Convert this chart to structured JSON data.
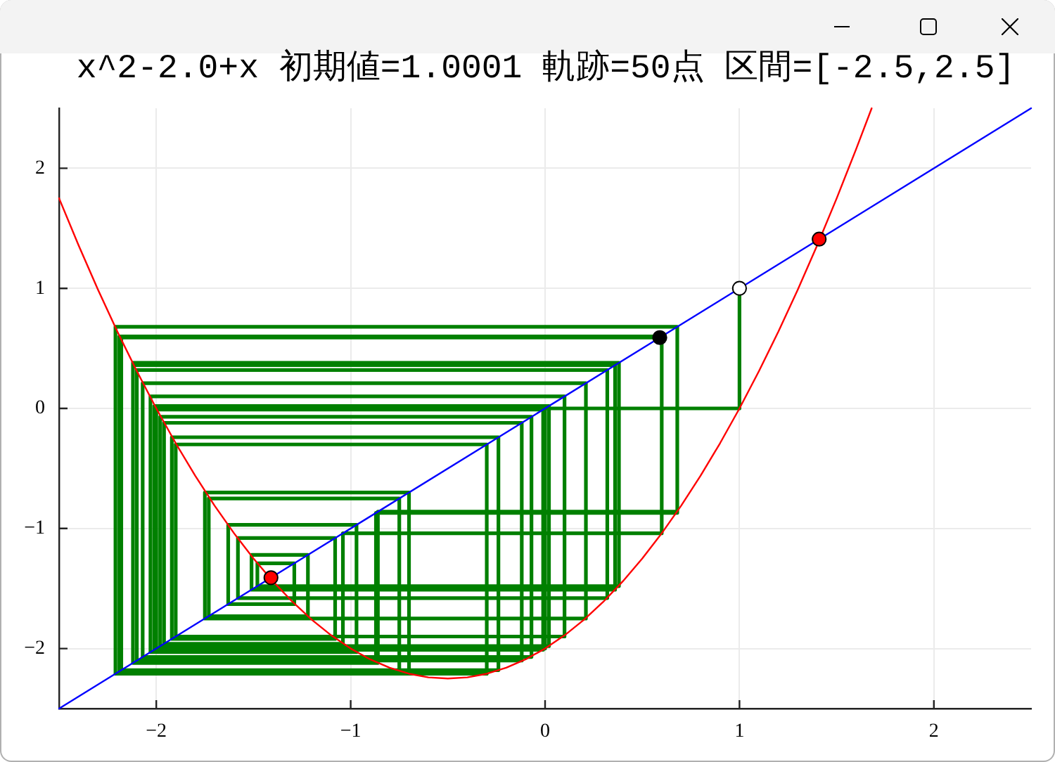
{
  "chart_data": {
    "type": "line",
    "title": "x^2-2.0+x 初期値=1.0001 軌跡=50点 区間=[-2.5,2.5]",
    "xlim": [
      -2.5,
      2.5
    ],
    "xticks": [
      -2,
      -1,
      0,
      1,
      2
    ],
    "ylim": [
      -2.5,
      2.5
    ],
    "yticks": [
      -2,
      -1,
      0,
      1,
      2
    ],
    "grid": true,
    "series": [
      {
        "color": "#008000",
        "x": [
          1,
          1,
          0,
          0,
          -2,
          -2,
          0,
          0,
          -2,
          -2,
          0,
          0,
          -2,
          -2,
          -0.01,
          -0.01,
          -2.01,
          -2.01,
          0.02,
          0.02,
          -1.98,
          -1.98,
          -0.07,
          -0.07,
          -2.07,
          -2.07,
          0.21,
          0.21,
          -1.75,
          -1.75,
          -0.7,
          -0.7,
          -2.21,
          -2.21,
          0.68,
          0.68,
          -0.86,
          -0.86,
          -2.12,
          -2.12,
          0.38,
          0.38,
          -1.48,
          -1.48,
          -1.29,
          -1.29,
          -1.63,
          -1.63,
          -0.97,
          -0.97,
          -2.03,
          -2.03,
          0.1,
          0.1,
          -1.9,
          -1.9,
          -0.3,
          -0.3,
          -2.21,
          -2.21,
          0.68,
          0.68,
          -0.87,
          -0.87,
          -2.12,
          -2.12,
          0.36,
          0.36,
          -1.51,
          -1.51,
          -1.22,
          -1.22,
          -1.73,
          -1.73,
          -0.75,
          -0.75,
          -2.19,
          -2.19,
          0.6,
          0.6,
          -1.04,
          -1.04,
          -1.96,
          -1.96,
          -0.12,
          -0.12,
          -2.1,
          -2.1,
          0.32,
          0.32,
          -1.58,
          -1.58,
          -1.08,
          -1.08,
          -1.92,
          -1.92,
          -0.24,
          -0.24,
          -2.18,
          -2.18,
          0.59
        ],
        "values": [
          1,
          0,
          0,
          -2,
          -2,
          0,
          0,
          -2,
          -2,
          0,
          0,
          -2,
          -2,
          -0.01,
          -0.01,
          -2.01,
          -2.01,
          0.02,
          0.02,
          -1.98,
          -1.98,
          -0.07,
          -0.07,
          -2.07,
          -2.07,
          0.21,
          0.21,
          -1.75,
          -1.75,
          -0.7,
          -0.7,
          -2.21,
          -2.21,
          0.68,
          0.68,
          -0.86,
          -0.86,
          -2.12,
          -2.12,
          0.38,
          0.38,
          -1.48,
          -1.48,
          -1.29,
          -1.29,
          -1.63,
          -1.63,
          -0.97,
          -0.97,
          -2.03,
          -2.03,
          0.1,
          0.1,
          -1.9,
          -1.9,
          -0.3,
          -0.3,
          -2.21,
          -2.21,
          0.68,
          0.68,
          -0.87,
          -0.87,
          -2.12,
          -2.12,
          0.36,
          0.36,
          -1.51,
          -1.51,
          -1.22,
          -1.22,
          -1.73,
          -1.73,
          -0.75,
          -0.75,
          -2.19,
          -2.19,
          0.6,
          0.6,
          -1.04,
          -1.04,
          -1.96,
          -1.96,
          -0.12,
          -0.12,
          -2.1,
          -2.1,
          0.32,
          0.32,
          -1.58,
          -1.58,
          -1.08,
          -1.08,
          -1.92,
          -1.92,
          -0.24,
          -0.24,
          -2.18,
          -2.18,
          0.59,
          0.59
        ]
      },
      {
        "color": "#ff0000",
        "x": [
          -2.5,
          -2.4,
          -2.3,
          -2.2,
          -2.1,
          -2,
          -1.9,
          -1.8,
          -1.7,
          -1.6,
          -1.5,
          -1.4,
          -1.3,
          -1.2,
          -1.1,
          -1,
          -0.9,
          -0.8,
          -0.7,
          -0.6,
          -0.5,
          -0.4,
          -0.3,
          -0.2,
          -0.1,
          0,
          0.1,
          0.2,
          0.3,
          0.4,
          0.5,
          0.6,
          0.7,
          0.8,
          0.9,
          1,
          1.1,
          1.2,
          1.3,
          1.4,
          1.5,
          1.6,
          1.68
        ],
        "values": [
          1.75,
          1.36,
          0.99,
          0.64,
          0.31,
          0,
          -0.29,
          -0.56,
          -0.81,
          -1.04,
          -1.25,
          -1.44,
          -1.61,
          -1.76,
          -1.89,
          -2,
          -2.09,
          -2.16,
          -2.21,
          -2.24,
          -2.25,
          -2.24,
          -2.21,
          -2.16,
          -2.09,
          -2,
          -1.89,
          -1.76,
          -1.61,
          -1.44,
          -1.25,
          -1.04,
          -0.81,
          -0.56,
          -0.29,
          0,
          0.31,
          0.64,
          0.99,
          1.36,
          1.75,
          2.16,
          2.5
        ]
      },
      {
        "color": "#0000ff",
        "x": [
          -2.5,
          2.5
        ],
        "values": [
          -2.5,
          2.5
        ]
      },
      {
        "type": "scatter",
        "color": "#ff0000",
        "marker": "circle",
        "x": [
          -1.41,
          1.41
        ],
        "values": [
          -1.41,
          1.41
        ]
      },
      {
        "type": "scatter",
        "color": "#ffffff",
        "marker": "circle",
        "x": [
          1
        ],
        "values": [
          1
        ]
      },
      {
        "type": "scatter",
        "color": "#000000",
        "marker": "circle",
        "x": [
          0.59
        ],
        "values": [
          0.59
        ]
      }
    ]
  }
}
